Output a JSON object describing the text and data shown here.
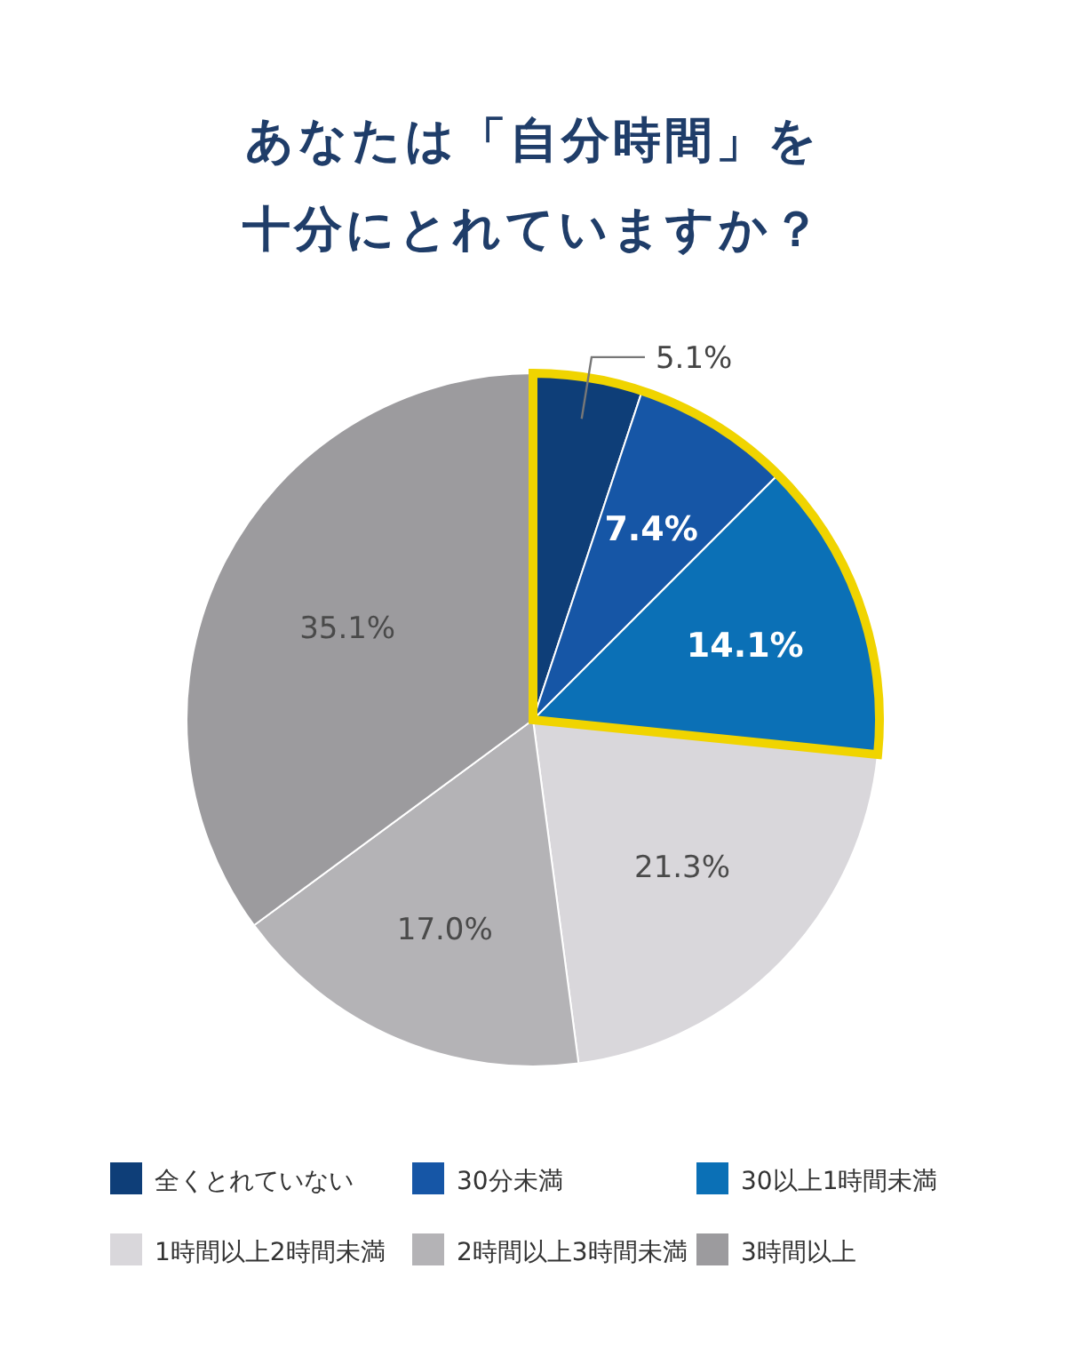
{
  "chart_data": {
    "type": "pie",
    "title": "あなたは「自分時間」を",
    "subtitle": "十分にとれていますか？",
    "categories": [
      "全くとれていない",
      "30分未満",
      "30以上1時間未満",
      "1時間以上2時間未満",
      "2時間以上3時間未満",
      "3時間以上"
    ],
    "values": [
      5.1,
      7.4,
      14.1,
      21.3,
      17.0,
      35.1
    ],
    "value_labels": [
      "5.1%",
      "7.4%",
      "14.1%",
      "21.3%",
      "17.0%",
      "35.1%"
    ],
    "colors": [
      "#0e3e78",
      "#1656a6",
      "#0b70b6",
      "#d9d7db",
      "#b4b3b6",
      "#9c9b9e"
    ],
    "legend": "bottom"
  }
}
